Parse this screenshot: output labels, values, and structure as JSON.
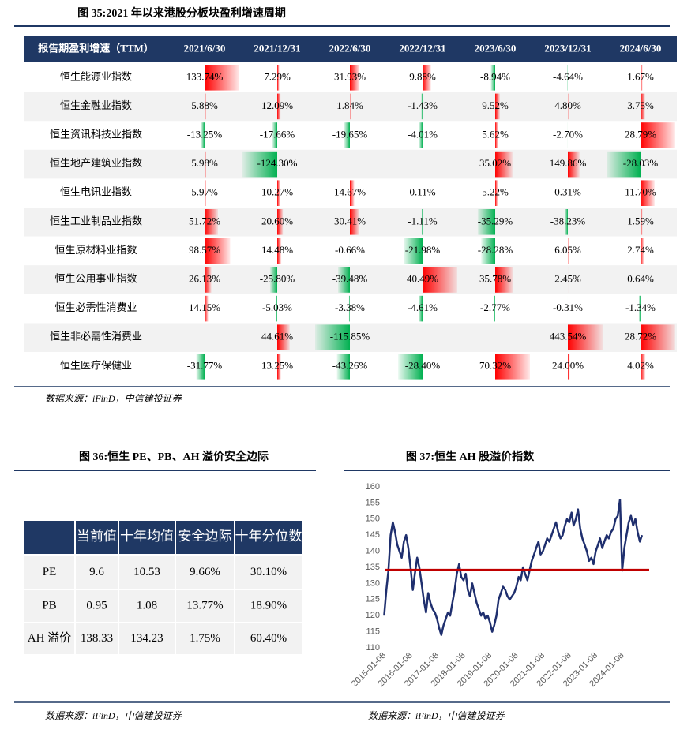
{
  "fig35": {
    "title": "图 35:2021 年以来港股分板块盈利增速周期",
    "headers": [
      "报告期盈利增速（TTM）",
      "2021/6/30",
      "2021/12/31",
      "2022/6/30",
      "2022/12/31",
      "2023/6/30",
      "2023/12/31",
      "2024/6/30"
    ],
    "bar_colors": {
      "positive": "#ff0000",
      "negative": "#00b050"
    },
    "rows": [
      {
        "label": "恒生能源业指数",
        "cells": [
          "133.74%",
          "7.29%",
          "31.93%",
          "9.88%",
          "-8.94%",
          "-4.64%",
          "1.67%"
        ]
      },
      {
        "label": "恒生金融业指数",
        "cells": [
          "5.88%",
          "12.09%",
          "1.84%",
          "-1.43%",
          "9.52%",
          "4.80%",
          "3.75%"
        ]
      },
      {
        "label": "恒生资讯科技业指数",
        "cells": [
          "-13.25%",
          "-17.66%",
          "-19.65%",
          "-4.01%",
          "5.62%",
          "-2.70%",
          "28.79%"
        ]
      },
      {
        "label": "恒生地产建筑业指数",
        "cells": [
          "5.98%",
          "-124.30%",
          null,
          null,
          "35.02%",
          "149.86%",
          "-28.03%"
        ]
      },
      {
        "label": "恒生电讯业指数",
        "cells": [
          "5.97%",
          "10.27%",
          "14.67%",
          "0.11%",
          "5.22%",
          "0.31%",
          "11.70%"
        ]
      },
      {
        "label": "恒生工业制品业指数",
        "cells": [
          "51.72%",
          "20.60%",
          "30.41%",
          "-1.11%",
          "-35.29%",
          "-38.23%",
          "1.59%"
        ]
      },
      {
        "label": "恒生原材料业指数",
        "cells": [
          "98.57%",
          "14.48%",
          "-0.66%",
          "-21.98%",
          "-28.28%",
          "6.05%",
          "2.74%"
        ]
      },
      {
        "label": "恒生公用事业指数",
        "cells": [
          "26.13%",
          "-25.80%",
          "-39.48%",
          "40.49%",
          "35.78%",
          "2.45%",
          "0.64%"
        ]
      },
      {
        "label": "恒生必需性消费业",
        "cells": [
          "14.15%",
          "-5.03%",
          "-3.38%",
          "-4.61%",
          "-2.77%",
          "-0.31%",
          "-1.34%"
        ]
      },
      {
        "label": "恒生非必需性消费业",
        "cells": [
          null,
          "44.61%",
          "-115.85%",
          null,
          null,
          "443.54%",
          "28.72%"
        ]
      },
      {
        "label": "恒生医疗保健业",
        "cells": [
          "-31.77%",
          "13.25%",
          "-43.26%",
          "-28.40%",
          "70.32%",
          "24.00%",
          "4.02%"
        ]
      }
    ],
    "source": "数据来源：iFinD，中信建投证券"
  },
  "fig36": {
    "title": "图 36:恒生 PE、PB、AH 溢价安全边际",
    "headers": [
      "当前值",
      "十年均值",
      "安全边际",
      "十年分位数"
    ],
    "rows": [
      {
        "label": "PE",
        "cells": [
          "9.6",
          "10.53",
          "9.66%",
          "30.10%"
        ]
      },
      {
        "label": "PB",
        "cells": [
          "0.95",
          "1.08",
          "13.77%",
          "18.90%"
        ]
      },
      {
        "label": "AH 溢价",
        "cells": [
          "138.33",
          "134.23",
          "1.75%",
          "60.40%"
        ]
      }
    ],
    "source": "数据来源：iFinD，中信建投证券"
  },
  "chart_data": {
    "type": "line",
    "title": "图 37:恒生 AH 股溢价指数",
    "x": [
      "2015-01",
      "2015-02",
      "2015-03",
      "2015-04",
      "2015-05",
      "2015-06",
      "2015-07",
      "2015-08",
      "2015-09",
      "2015-10",
      "2015-11",
      "2015-12",
      "2016-01",
      "2016-02",
      "2016-03",
      "2016-04",
      "2016-05",
      "2016-06",
      "2016-07",
      "2016-08",
      "2016-09",
      "2016-10",
      "2016-11",
      "2016-12",
      "2017-01",
      "2017-02",
      "2017-03",
      "2017-04",
      "2017-05",
      "2017-06",
      "2017-07",
      "2017-08",
      "2017-09",
      "2017-10",
      "2017-11",
      "2017-12",
      "2018-01",
      "2018-02",
      "2018-03",
      "2018-04",
      "2018-05",
      "2018-06",
      "2018-07",
      "2018-08",
      "2018-09",
      "2018-10",
      "2018-11",
      "2018-12",
      "2019-01",
      "2019-02",
      "2019-03",
      "2019-04",
      "2019-05",
      "2019-06",
      "2019-07",
      "2019-08",
      "2019-09",
      "2019-10",
      "2019-11",
      "2019-12",
      "2020-01",
      "2020-02",
      "2020-03",
      "2020-04",
      "2020-05",
      "2020-06",
      "2020-07",
      "2020-08",
      "2020-09",
      "2020-10",
      "2020-11",
      "2020-12",
      "2021-01",
      "2021-02",
      "2021-03",
      "2021-04",
      "2021-05",
      "2021-06",
      "2021-07",
      "2021-08",
      "2021-09",
      "2021-10",
      "2021-11",
      "2021-12",
      "2022-01",
      "2022-02",
      "2022-03",
      "2022-04",
      "2022-05",
      "2022-06",
      "2022-07",
      "2022-08",
      "2022-09",
      "2022-10",
      "2022-11",
      "2022-12",
      "2023-01",
      "2023-02",
      "2023-03",
      "2023-04",
      "2023-05",
      "2023-06",
      "2023-07",
      "2023-08",
      "2023-09",
      "2023-10",
      "2023-11",
      "2023-12",
      "2024-01",
      "2024-02",
      "2024-03",
      "2024-04",
      "2024-05",
      "2024-06",
      "2024-07",
      "2024-08",
      "2024-09",
      "2024-10"
    ],
    "series": [
      {
        "color": "#1f2f6e",
        "values": [
          120,
          128,
          134,
          145,
          149,
          146,
          142,
          140,
          138,
          143,
          145,
          141,
          135,
          128,
          133,
          138,
          135,
          130,
          125,
          121,
          127,
          124,
          122,
          121,
          119,
          116,
          114,
          117,
          119,
          121,
          120,
          124,
          128,
          133,
          136,
          132,
          131,
          133,
          128,
          126,
          130,
          127,
          124,
          122,
          120,
          121,
          119,
          120,
          118,
          115,
          117,
          120,
          125,
          127,
          129,
          128,
          126,
          125,
          126,
          127,
          129,
          132,
          131,
          135,
          133,
          131,
          134,
          137,
          139,
          141,
          143,
          139,
          140,
          142,
          144,
          143,
          145,
          147,
          149,
          146,
          144,
          145,
          148,
          150,
          149,
          152,
          148,
          150,
          153,
          147,
          144,
          142,
          140,
          137,
          138,
          136,
          140,
          142,
          144,
          141,
          143,
          145,
          144,
          146,
          147,
          150,
          151,
          156,
          134,
          141,
          145,
          149,
          151,
          148,
          150,
          146,
          143,
          145
        ]
      }
    ],
    "reference_line": {
      "value": 134.23,
      "color": "#c00000"
    },
    "xlim": [
      "2015-01-08",
      "2025-01-08"
    ],
    "xticks": [
      "2015-01-08",
      "2016-01-08",
      "2017-01-08",
      "2018-01-08",
      "2019-01-08",
      "2020-01-08",
      "2021-01-08",
      "2022-01-08",
      "2023-01-08",
      "2024-01-08"
    ],
    "ylim": [
      110,
      160
    ],
    "yticks": [
      110,
      115,
      120,
      125,
      130,
      135,
      140,
      145,
      150,
      155,
      160
    ],
    "source": "数据来源：iFinD，中信建投证券"
  }
}
